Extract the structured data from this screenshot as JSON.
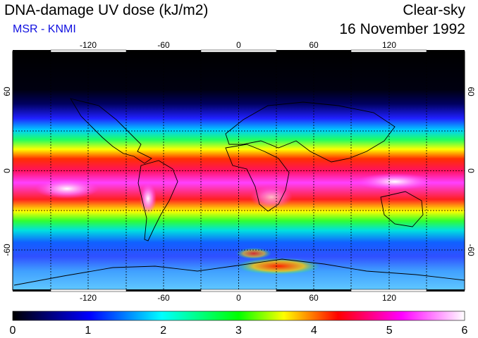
{
  "header": {
    "title": "DNA-damage UV dose (kJ/m2)",
    "subtitle": "MSR - KNMI",
    "condition": "Clear-sky",
    "date": "16 November 1992"
  },
  "map": {
    "lon_ticks": [
      "-120",
      "-60",
      "0",
      "60",
      "120"
    ],
    "lat_ticks": [
      "60",
      "0",
      "-60"
    ],
    "lon_range": [
      -180,
      180
    ],
    "lat_range": [
      -90,
      90
    ],
    "grid": "dashed every 30 degrees"
  },
  "colorbar": {
    "labels": [
      "0",
      "1",
      "2",
      "3",
      "4",
      "5",
      "6"
    ],
    "min": 0,
    "max": 6,
    "colors": [
      "#000000",
      "#0000ff",
      "#00ffff",
      "#00ff00",
      "#ffff00",
      "#ff0000",
      "#ff00ff",
      "#ffffff"
    ]
  }
}
